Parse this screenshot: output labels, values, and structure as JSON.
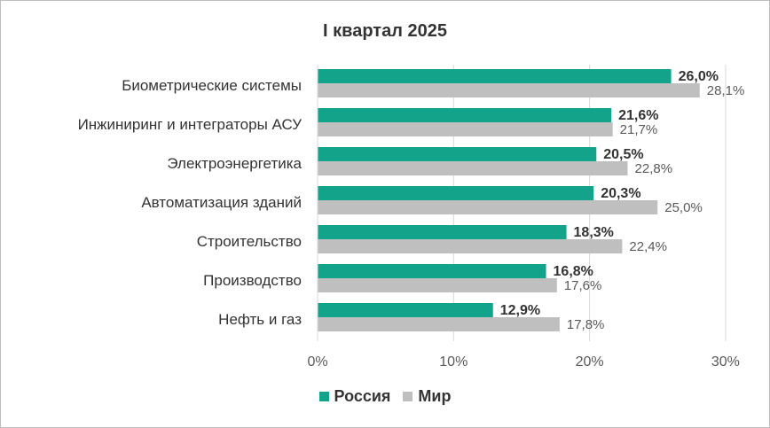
{
  "chart_data": {
    "type": "bar",
    "orientation": "horizontal",
    "title": "I квартал 2025",
    "categories": [
      "Биометрические системы",
      "Инжиниринг и интеграторы АСУ",
      "Электроэнергетика",
      "Автоматизация зданий",
      "Строительство",
      "Производство",
      "Нефть и газ"
    ],
    "series": [
      {
        "name": "Россия",
        "color": "#12a38a",
        "values": [
          26.0,
          21.6,
          20.5,
          20.3,
          18.3,
          16.8,
          12.9
        ],
        "labels": [
          "26,0%",
          "21,6%",
          "20,5%",
          "20,3%",
          "18,3%",
          "16,8%",
          "12,9%"
        ]
      },
      {
        "name": "Мир",
        "color": "#bfbfbf",
        "values": [
          28.1,
          21.7,
          22.8,
          25.0,
          22.4,
          17.6,
          17.8
        ],
        "labels": [
          "28,1%",
          "21,7%",
          "22,8%",
          "25,0%",
          "22,4%",
          "17,6%",
          "17,8%"
        ]
      }
    ],
    "xlim": [
      0,
      30
    ],
    "xticks": [
      0,
      10,
      20,
      30
    ],
    "xtick_labels": [
      "0%",
      "10%",
      "20%",
      "30%"
    ],
    "grid": "vertical",
    "legend_position": "bottom"
  }
}
